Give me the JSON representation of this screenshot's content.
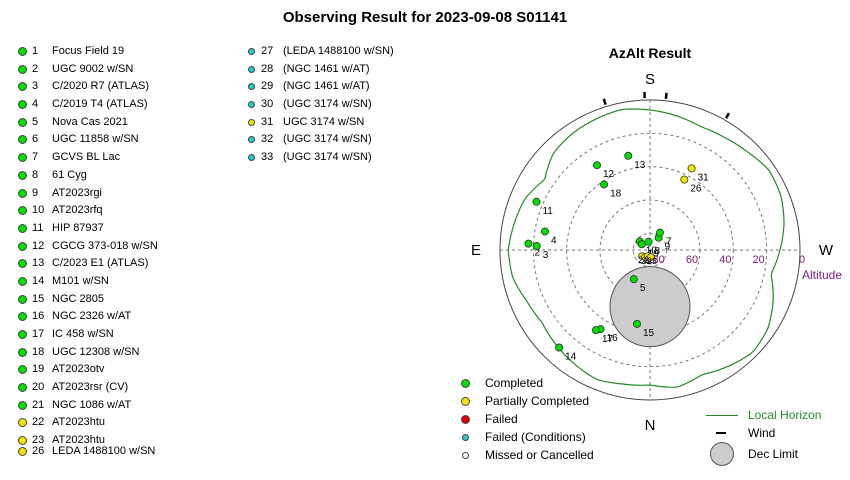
{
  "title": "Observing Result for 2023-09-08 S01141",
  "colors": {
    "completed": "#00dd00",
    "partial": "#f2e600",
    "failed": "#dd0000",
    "failed_conditions": "#22cccc",
    "missed": "#ffffff",
    "horizon": "#228b22",
    "altitude_label": "#7a1a7a"
  },
  "targets_left": [
    {
      "num": "1",
      "name": "Focus Field 19",
      "status": "completed"
    },
    {
      "num": "2",
      "name": "UGC 9002 w/SN",
      "status": "completed"
    },
    {
      "num": "3",
      "name": "C/2020 R7 (ATLAS)",
      "status": "completed"
    },
    {
      "num": "4",
      "name": "C/2019 T4 (ATLAS)",
      "status": "completed"
    },
    {
      "num": "5",
      "name": "Nova Cas 2021",
      "status": "completed"
    },
    {
      "num": "6",
      "name": "UGC 11858 w/SN",
      "status": "completed"
    },
    {
      "num": "7",
      "name": "GCVS BL Lac",
      "status": "completed"
    },
    {
      "num": "8",
      "name": "61 Cyg",
      "status": "completed"
    },
    {
      "num": "9",
      "name": "AT2023rgi",
      "status": "completed"
    },
    {
      "num": "10",
      "name": "AT2023rfq",
      "status": "completed"
    },
    {
      "num": "11",
      "name": "HIP 87937",
      "status": "completed"
    },
    {
      "num": "12",
      "name": "CGCG 373-018 w/SN",
      "status": "completed"
    },
    {
      "num": "13",
      "name": "C/2023 E1 (ATLAS)",
      "status": "completed"
    },
    {
      "num": "14",
      "name": "M101 w/SN",
      "status": "completed"
    },
    {
      "num": "15",
      "name": "NGC 2805",
      "status": "completed"
    },
    {
      "num": "16",
      "name": "NGC 2326 w/AT",
      "status": "completed"
    },
    {
      "num": "17",
      "name": "IC 458 w/SN",
      "status": "completed"
    },
    {
      "num": "18",
      "name": "UGC 12308 w/SN",
      "status": "completed"
    },
    {
      "num": "19",
      "name": "AT2023otv",
      "status": "completed"
    },
    {
      "num": "20",
      "name": "AT2023rsr (CV)",
      "status": "completed"
    },
    {
      "num": "21",
      "name": "NGC 1086 w/AT",
      "status": "completed"
    },
    {
      "num": "22",
      "name": "AT2023htu",
      "status": "partial"
    },
    {
      "num": "23",
      "name": "AT2023htu",
      "status": "partial"
    }
  ],
  "targets_left_b": [
    {
      "num": "26",
      "name": "LEDA 1488100 w/SN",
      "status": "partial"
    }
  ],
  "targets_mid": [
    {
      "num": "27",
      "name": "(LEDA 1488100 w/SN)",
      "status": "failed_conditions"
    },
    {
      "num": "28",
      "name": "(NGC 1461 w/AT)",
      "status": "failed_conditions"
    },
    {
      "num": "29",
      "name": "(NGC 1461 w/AT)",
      "status": "failed_conditions"
    },
    {
      "num": "30",
      "name": "(UGC 3174 w/SN)",
      "status": "failed_conditions"
    },
    {
      "num": "31",
      "name": "UGC 3174 w/SN",
      "status": "partial"
    },
    {
      "num": "32",
      "name": "(UGC 3174 w/SN)",
      "status": "failed_conditions"
    },
    {
      "num": "33",
      "name": "(UGC 3174 w/SN)",
      "status": "failed_conditions"
    }
  ],
  "chart_data": {
    "type": "scatter",
    "projection": "polar-azimuth-altitude",
    "title": "AzAlt Result",
    "compass": {
      "top": "S",
      "bottom": "N",
      "left": "E",
      "right": "W"
    },
    "altitude_label": "Altitude",
    "altitude_rings": [
      0,
      20,
      40,
      60,
      80
    ],
    "altitude_tick_labels": [
      "0",
      "20",
      "40",
      "60",
      "80"
    ],
    "points": [
      {
        "label": "2",
        "az": 93,
        "alt": 17,
        "status": "completed"
      },
      {
        "label": "3",
        "az": 92,
        "alt": 22,
        "status": "completed"
      },
      {
        "label": "4",
        "az": 100,
        "alt": 26,
        "status": "completed"
      },
      {
        "label": "5",
        "az": 29,
        "alt": 70,
        "status": "completed"
      },
      {
        "label": "8",
        "az": 170,
        "alt": 85,
        "status": "completed"
      },
      {
        "label": "9",
        "az": 215,
        "alt": 81,
        "status": "completed"
      },
      {
        "label": "7",
        "az": 210,
        "alt": 78,
        "status": "completed"
      },
      {
        "label": "10",
        "az": 130,
        "alt": 82,
        "status": "completed"
      },
      {
        "label": "19",
        "az": 125,
        "alt": 84,
        "status": "completed"
      },
      {
        "label": "11",
        "az": 113,
        "alt": 16,
        "status": "completed"
      },
      {
        "label": "12",
        "az": 148,
        "alt": 30,
        "status": "completed"
      },
      {
        "label": "13",
        "az": 167,
        "alt": 32,
        "status": "completed"
      },
      {
        "label": "18",
        "az": 145,
        "alt": 42,
        "status": "completed"
      },
      {
        "label": "14",
        "az": 43,
        "alt": 10,
        "status": "completed"
      },
      {
        "label": "15",
        "az": 10,
        "alt": 45,
        "status": "completed"
      },
      {
        "label": "16",
        "az": 32,
        "alt": 34,
        "status": "completed"
      },
      {
        "label": "17",
        "az": 34,
        "alt": 32,
        "status": "completed"
      },
      {
        "label": "26",
        "az": 206,
        "alt": 43,
        "status": "partial"
      },
      {
        "label": "31",
        "az": 207,
        "alt": 35,
        "status": "partial"
      }
    ],
    "center_cluster_labels": [
      "20",
      "21",
      "22",
      "23"
    ],
    "dec_limit": {
      "az": 0,
      "alt": 56,
      "radius_deg": 24
    },
    "local_horizon_alt": [
      9,
      8,
      6,
      8,
      10,
      12,
      10,
      6,
      5,
      7,
      9,
      14,
      8,
      6,
      5,
      4,
      6,
      8,
      10,
      9,
      7,
      4,
      5,
      8,
      12,
      16,
      10,
      5,
      3,
      6,
      9,
      6
    ],
    "wind_markers_az": [
      163,
      186,
      210,
      178
    ],
    "legend_markers": [
      {
        "label": "Completed",
        "status": "completed"
      },
      {
        "label": "Partially Completed",
        "status": "partial"
      },
      {
        "label": "Failed",
        "status": "failed"
      },
      {
        "label": "Failed (Conditions)",
        "status": "failed_conditions"
      },
      {
        "label": "Missed or Cancelled",
        "status": "missed"
      }
    ],
    "legend_lines": [
      {
        "label": "Local Horizon",
        "kind": "line"
      },
      {
        "label": "Wind",
        "kind": "wind"
      },
      {
        "label": "Dec Limit",
        "kind": "disc"
      }
    ]
  }
}
